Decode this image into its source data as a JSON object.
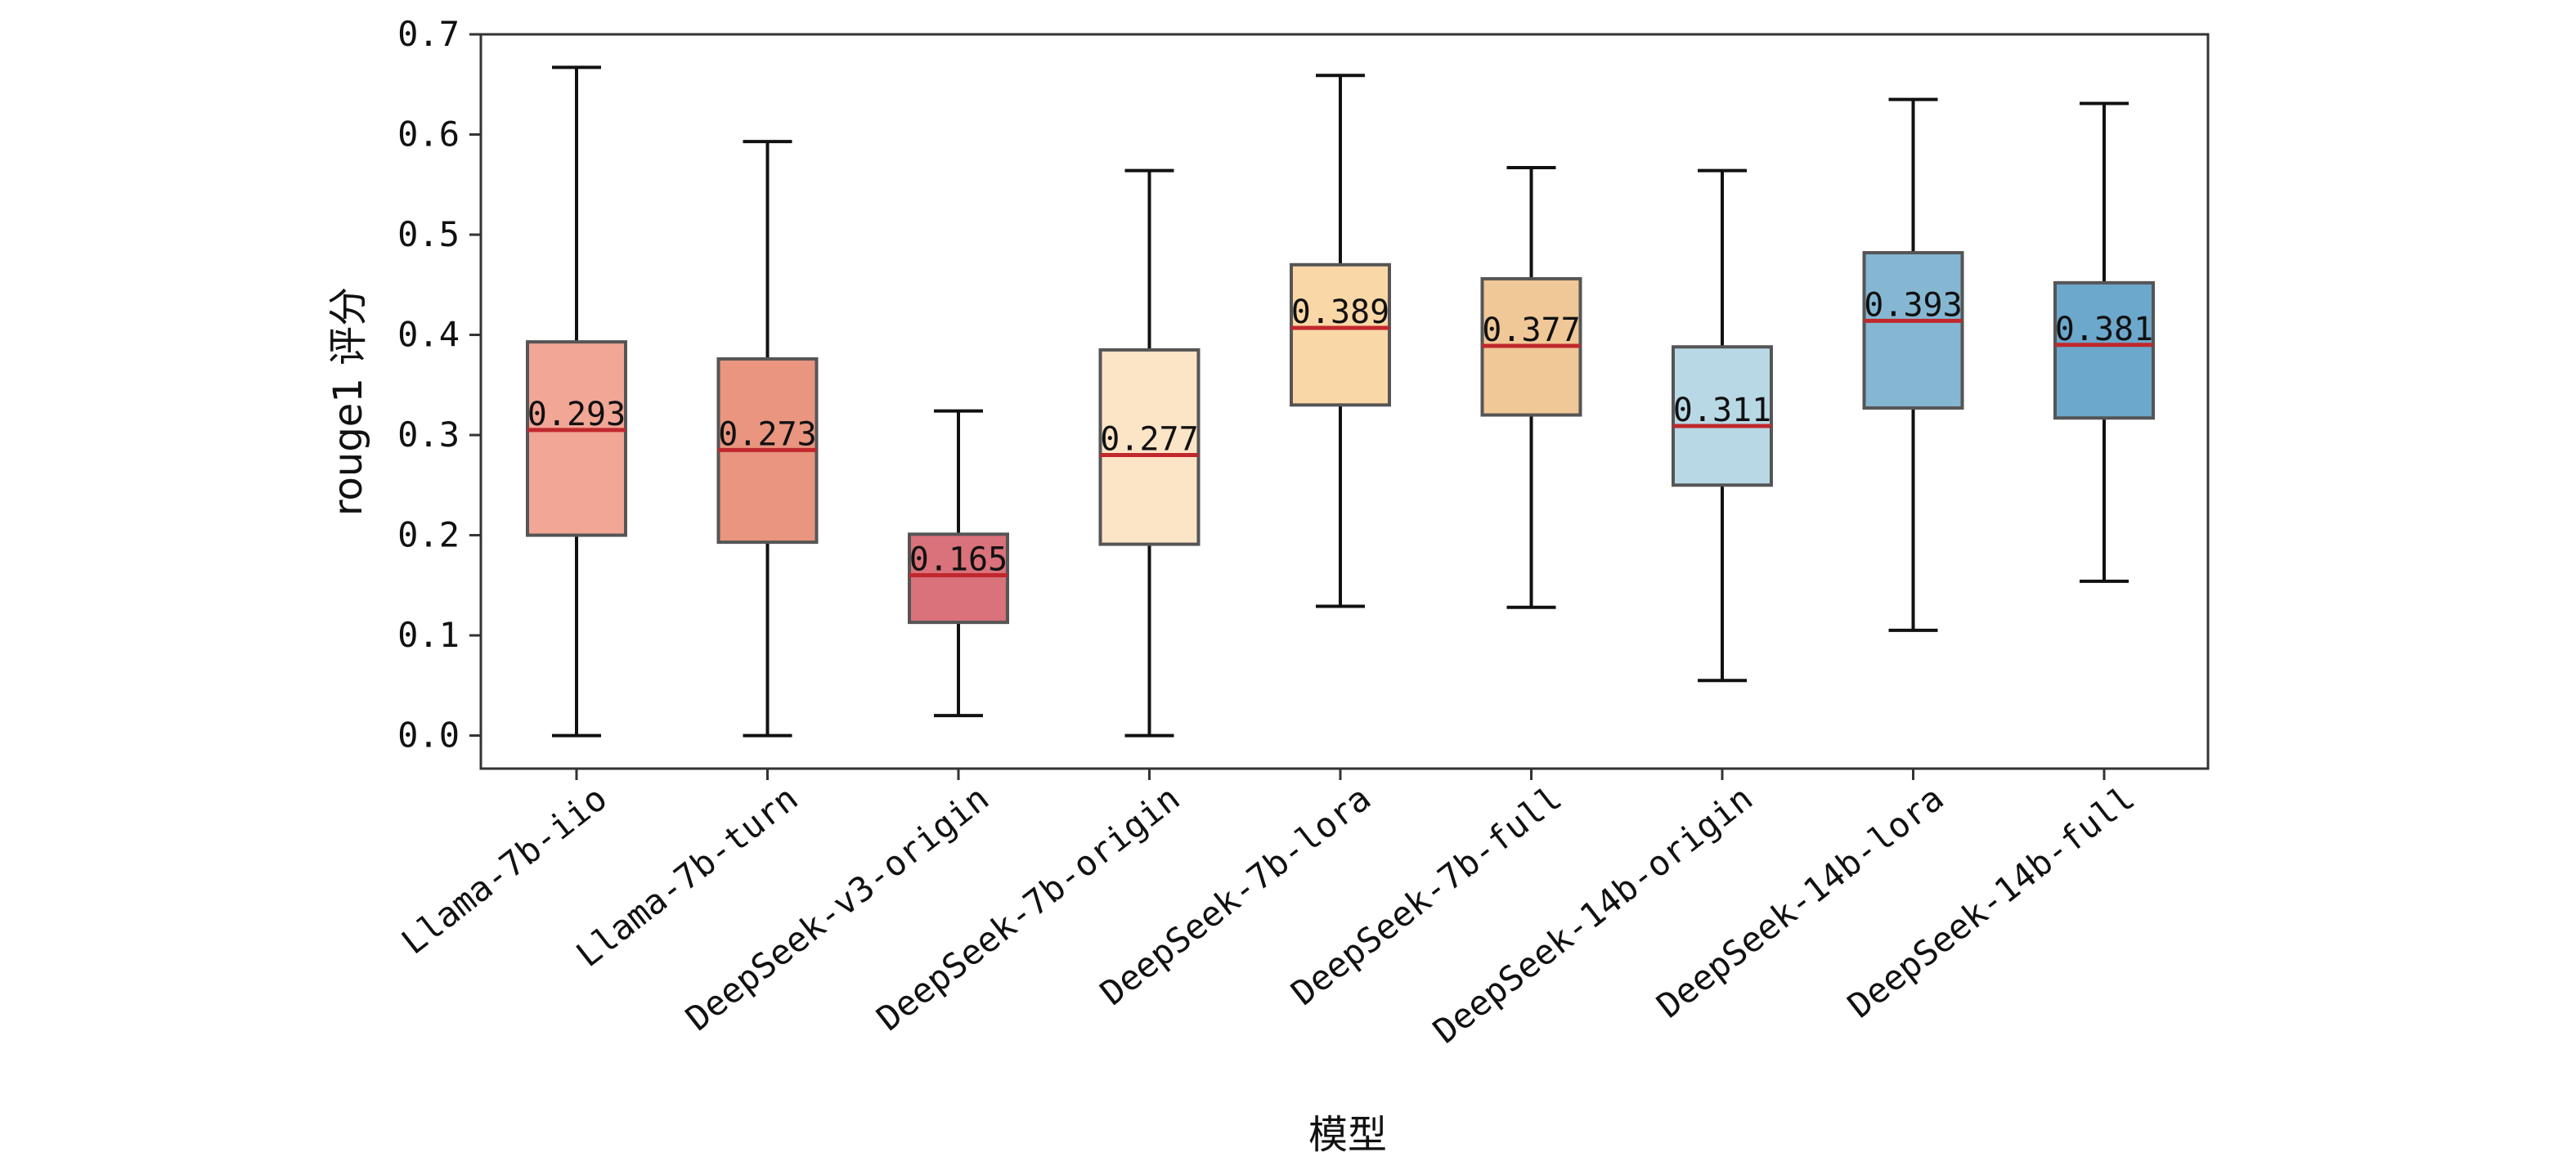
{
  "chart_data": {
    "type": "box",
    "xlabel": "模型",
    "ylabel": "rouge1 评分",
    "ylim": [
      -0.033,
      0.7
    ],
    "yticks": [
      0.0,
      0.1,
      0.2,
      0.3,
      0.4,
      0.5,
      0.6,
      0.7
    ],
    "ytick_labels": [
      "0.0",
      "0.1",
      "0.2",
      "0.3",
      "0.4",
      "0.5",
      "0.6",
      "0.7"
    ],
    "grid": false,
    "categories": [
      "Llama-7b-iio",
      "Llama-7b-turn",
      "DeepSeek-v3-origin",
      "DeepSeek-7b-origin",
      "DeepSeek-7b-lora",
      "DeepSeek-7b-full",
      "DeepSeek-14b-origin",
      "DeepSeek-14b-lora",
      "DeepSeek-14b-full"
    ],
    "boxes": [
      {
        "whisker_low": 0.0,
        "q1": 0.2,
        "median": 0.305,
        "q3": 0.393,
        "whisker_high": 0.667,
        "label": "0.293",
        "color": "#F1A696"
      },
      {
        "whisker_low": 0.0,
        "q1": 0.193,
        "median": 0.285,
        "q3": 0.376,
        "whisker_high": 0.593,
        "label": "0.273",
        "color": "#E99580"
      },
      {
        "whisker_low": 0.02,
        "q1": 0.113,
        "median": 0.16,
        "q3": 0.201,
        "whisker_high": 0.324,
        "label": "0.165",
        "color": "#D9727A"
      },
      {
        "whisker_low": 0.0,
        "q1": 0.191,
        "median": 0.28,
        "q3": 0.385,
        "whisker_high": 0.564,
        "label": "0.277",
        "color": "#FCE4C6"
      },
      {
        "whisker_low": 0.129,
        "q1": 0.33,
        "median": 0.407,
        "q3": 0.47,
        "whisker_high": 0.659,
        "label": "0.389",
        "color": "#FAD7A6"
      },
      {
        "whisker_low": 0.128,
        "q1": 0.32,
        "median": 0.389,
        "q3": 0.456,
        "whisker_high": 0.567,
        "label": "0.377",
        "color": "#F0C796"
      },
      {
        "whisker_low": 0.055,
        "q1": 0.25,
        "median": 0.309,
        "q3": 0.388,
        "whisker_high": 0.564,
        "label": "0.311",
        "color": "#B8D8E5"
      },
      {
        "whisker_low": 0.105,
        "q1": 0.327,
        "median": 0.414,
        "q3": 0.482,
        "whisker_high": 0.635,
        "label": "0.393",
        "color": "#85B7D3"
      },
      {
        "whisker_low": 0.154,
        "q1": 0.317,
        "median": 0.39,
        "q3": 0.452,
        "whisker_high": 0.631,
        "label": "0.381",
        "color": "#6CA7CC"
      }
    ],
    "colors": {
      "median_line": "#C0282D",
      "box_edge": "#555555",
      "whisker": "#111111",
      "axis": "#333333"
    }
  }
}
